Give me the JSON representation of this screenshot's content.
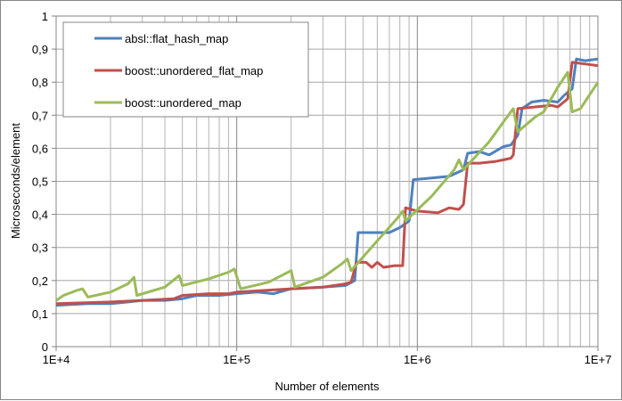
{
  "chart_data": {
    "type": "line",
    "title": "",
    "xlabel": "Number of elements",
    "ylabel": "Microseconds/element",
    "xscale": "log",
    "xlim": [
      10000,
      10000000
    ],
    "ylim": [
      0,
      1
    ],
    "grid": true,
    "legend_position": "top-left",
    "xticks": [
      {
        "v": 10000,
        "label": "1E+4"
      },
      {
        "v": 100000,
        "label": "1E+5"
      },
      {
        "v": 1000000,
        "label": "1E+6"
      },
      {
        "v": 10000000,
        "label": "1E+7"
      }
    ],
    "yticks": [
      {
        "v": 0,
        "label": "0"
      },
      {
        "v": 0.1,
        "label": "0,1"
      },
      {
        "v": 0.2,
        "label": "0,2"
      },
      {
        "v": 0.3,
        "label": "0,3"
      },
      {
        "v": 0.4,
        "label": "0,4"
      },
      {
        "v": 0.5,
        "label": "0,5"
      },
      {
        "v": 0.6,
        "label": "0,6"
      },
      {
        "v": 0.7,
        "label": "0,7"
      },
      {
        "v": 0.8,
        "label": "0,8"
      },
      {
        "v": 0.9,
        "label": "0,9"
      },
      {
        "v": 1,
        "label": "1"
      }
    ],
    "series": [
      {
        "name": "absl::flat_hash_map",
        "color": "#4f81bd",
        "points": [
          [
            10000,
            0.125
          ],
          [
            15000,
            0.13
          ],
          [
            20000,
            0.13
          ],
          [
            25000,
            0.135
          ],
          [
            30000,
            0.14
          ],
          [
            40000,
            0.14
          ],
          [
            50000,
            0.145
          ],
          [
            60000,
            0.155
          ],
          [
            80000,
            0.155
          ],
          [
            100000,
            0.16
          ],
          [
            130000,
            0.165
          ],
          [
            160000,
            0.16
          ],
          [
            200000,
            0.175
          ],
          [
            300000,
            0.18
          ],
          [
            400000,
            0.185
          ],
          [
            450000,
            0.2
          ],
          [
            470000,
            0.345
          ],
          [
            600000,
            0.345
          ],
          [
            700000,
            0.345
          ],
          [
            800000,
            0.36
          ],
          [
            900000,
            0.38
          ],
          [
            950000,
            0.505
          ],
          [
            1200000,
            0.51
          ],
          [
            1500000,
            0.515
          ],
          [
            1800000,
            0.535
          ],
          [
            1900000,
            0.585
          ],
          [
            2200000,
            0.59
          ],
          [
            2500000,
            0.58
          ],
          [
            3000000,
            0.605
          ],
          [
            3300000,
            0.61
          ],
          [
            3600000,
            0.64
          ],
          [
            3800000,
            0.72
          ],
          [
            4300000,
            0.74
          ],
          [
            5000000,
            0.745
          ],
          [
            6000000,
            0.74
          ],
          [
            6500000,
            0.76
          ],
          [
            7200000,
            0.78
          ],
          [
            7600000,
            0.87
          ],
          [
            8500000,
            0.865
          ],
          [
            10000000,
            0.87
          ]
        ]
      },
      {
        "name": "boost::unordered_flat_map",
        "color": "#c0504d",
        "points": [
          [
            10000,
            0.13
          ],
          [
            20000,
            0.135
          ],
          [
            30000,
            0.14
          ],
          [
            45000,
            0.145
          ],
          [
            50000,
            0.155
          ],
          [
            70000,
            0.16
          ],
          [
            90000,
            0.16
          ],
          [
            100000,
            0.165
          ],
          [
            200000,
            0.175
          ],
          [
            300000,
            0.18
          ],
          [
            400000,
            0.19
          ],
          [
            430000,
            0.195
          ],
          [
            460000,
            0.255
          ],
          [
            520000,
            0.255
          ],
          [
            560000,
            0.24
          ],
          [
            600000,
            0.255
          ],
          [
            650000,
            0.24
          ],
          [
            750000,
            0.245
          ],
          [
            830000,
            0.245
          ],
          [
            860000,
            0.42
          ],
          [
            1000000,
            0.41
          ],
          [
            1300000,
            0.405
          ],
          [
            1500000,
            0.42
          ],
          [
            1700000,
            0.415
          ],
          [
            1800000,
            0.43
          ],
          [
            1900000,
            0.555
          ],
          [
            2200000,
            0.555
          ],
          [
            2700000,
            0.56
          ],
          [
            3000000,
            0.565
          ],
          [
            3300000,
            0.57
          ],
          [
            3400000,
            0.58
          ],
          [
            3600000,
            0.72
          ],
          [
            4500000,
            0.725
          ],
          [
            5500000,
            0.73
          ],
          [
            6000000,
            0.725
          ],
          [
            6800000,
            0.75
          ],
          [
            7200000,
            0.86
          ],
          [
            8500000,
            0.855
          ],
          [
            10000000,
            0.85
          ]
        ]
      },
      {
        "name": "boost::unordered_map",
        "color": "#9bbb59",
        "points": [
          [
            10000,
            0.14
          ],
          [
            11000,
            0.155
          ],
          [
            13000,
            0.17
          ],
          [
            14000,
            0.175
          ],
          [
            15000,
            0.15
          ],
          [
            20000,
            0.165
          ],
          [
            25000,
            0.19
          ],
          [
            27000,
            0.21
          ],
          [
            28000,
            0.155
          ],
          [
            40000,
            0.18
          ],
          [
            48000,
            0.215
          ],
          [
            50000,
            0.185
          ],
          [
            70000,
            0.205
          ],
          [
            90000,
            0.225
          ],
          [
            97000,
            0.235
          ],
          [
            105000,
            0.175
          ],
          [
            150000,
            0.195
          ],
          [
            200000,
            0.23
          ],
          [
            210000,
            0.18
          ],
          [
            300000,
            0.21
          ],
          [
            380000,
            0.25
          ],
          [
            410000,
            0.265
          ],
          [
            430000,
            0.23
          ],
          [
            600000,
            0.32
          ],
          [
            780000,
            0.39
          ],
          [
            830000,
            0.41
          ],
          [
            860000,
            0.38
          ],
          [
            1200000,
            0.455
          ],
          [
            1600000,
            0.535
          ],
          [
            1700000,
            0.565
          ],
          [
            1800000,
            0.535
          ],
          [
            2500000,
            0.62
          ],
          [
            3000000,
            0.68
          ],
          [
            3400000,
            0.72
          ],
          [
            3600000,
            0.65
          ],
          [
            4500000,
            0.695
          ],
          [
            5000000,
            0.71
          ],
          [
            6000000,
            0.785
          ],
          [
            6800000,
            0.83
          ],
          [
            7200000,
            0.71
          ],
          [
            8000000,
            0.72
          ],
          [
            10000000,
            0.8
          ]
        ]
      }
    ]
  }
}
